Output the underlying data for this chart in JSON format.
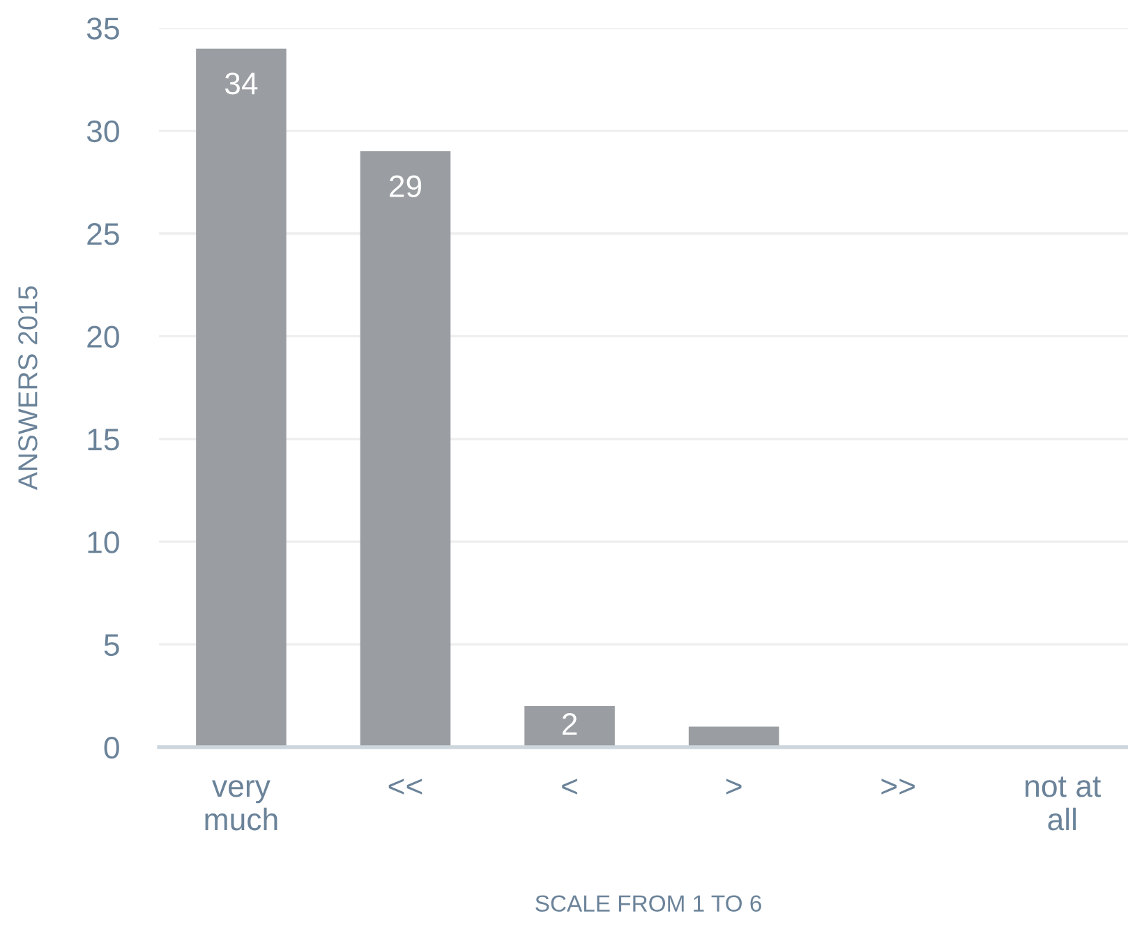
{
  "chart_data": {
    "type": "bar",
    "xlabel": "SCALE FROM 1 TO 6",
    "ylabel": "ANSWERS 2015",
    "categories": [
      "very much",
      "<<",
      "<",
      ">",
      ">>",
      "not at all"
    ],
    "values": [
      34,
      29,
      2,
      1,
      0,
      0
    ],
    "color": "#9a9ea2",
    "value_labels": [
      "34",
      "29",
      "2",
      null,
      null,
      null
    ],
    "ylim": [
      0,
      35
    ],
    "yticks": [
      0,
      5,
      10,
      15,
      20,
      25,
      30,
      35
    ],
    "grid": "y"
  }
}
